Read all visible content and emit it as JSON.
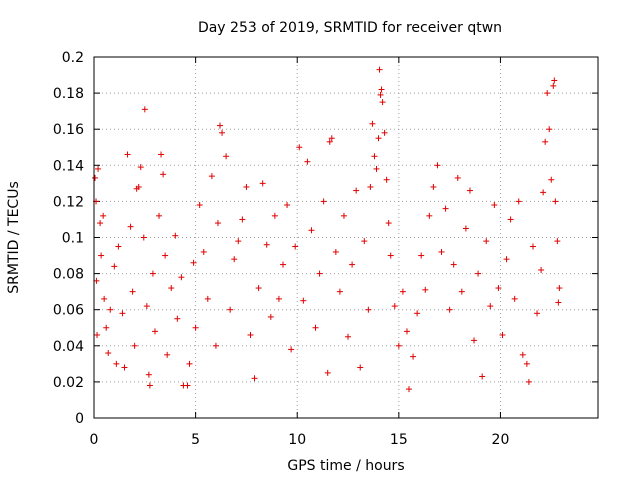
{
  "chart_data": {
    "type": "scatter",
    "title": "Day 253 of 2019, SRMTID for receiver qtwn",
    "xlabel": "GPS time / hours",
    "ylabel": "SRMTID / TECUs",
    "xlim": [
      0,
      24.8
    ],
    "ylim": [
      0,
      0.2
    ],
    "xticks": [
      0,
      5,
      10,
      15,
      20
    ],
    "yticks": [
      0,
      0.02,
      0.04,
      0.06,
      0.08,
      0.1,
      0.12,
      0.14,
      0.16,
      0.18,
      0.2
    ],
    "marker": "+",
    "color": "#e00000",
    "grid": true,
    "series": [
      {
        "name": "SRMTID",
        "points": [
          [
            0.05,
            0.133
          ],
          [
            0.1,
            0.12
          ],
          [
            0.12,
            0.076
          ],
          [
            0.15,
            0.046
          ],
          [
            0.2,
            0.138
          ],
          [
            0.3,
            0.108
          ],
          [
            0.35,
            0.09
          ],
          [
            0.45,
            0.112
          ],
          [
            0.5,
            0.066
          ],
          [
            0.6,
            0.05
          ],
          [
            0.7,
            0.036
          ],
          [
            0.8,
            0.06
          ],
          [
            1.0,
            0.084
          ],
          [
            1.1,
            0.03
          ],
          [
            1.2,
            0.095
          ],
          [
            1.4,
            0.058
          ],
          [
            1.5,
            0.028
          ],
          [
            1.65,
            0.146
          ],
          [
            1.8,
            0.106
          ],
          [
            1.9,
            0.07
          ],
          [
            2.0,
            0.04
          ],
          [
            2.1,
            0.127
          ],
          [
            2.2,
            0.128
          ],
          [
            2.3,
            0.139
          ],
          [
            2.45,
            0.1
          ],
          [
            2.5,
            0.171
          ],
          [
            2.6,
            0.062
          ],
          [
            2.7,
            0.024
          ],
          [
            2.75,
            0.018
          ],
          [
            2.9,
            0.08
          ],
          [
            3.0,
            0.048
          ],
          [
            3.2,
            0.112
          ],
          [
            3.3,
            0.146
          ],
          [
            3.4,
            0.135
          ],
          [
            3.5,
            0.09
          ],
          [
            3.6,
            0.035
          ],
          [
            3.8,
            0.072
          ],
          [
            4.0,
            0.101
          ],
          [
            4.1,
            0.055
          ],
          [
            4.3,
            0.078
          ],
          [
            4.4,
            0.018
          ],
          [
            4.6,
            0.018
          ],
          [
            4.7,
            0.03
          ],
          [
            4.9,
            0.086
          ],
          [
            5.0,
            0.05
          ],
          [
            5.2,
            0.118
          ],
          [
            5.4,
            0.092
          ],
          [
            5.6,
            0.066
          ],
          [
            5.8,
            0.134
          ],
          [
            6.0,
            0.04
          ],
          [
            6.1,
            0.108
          ],
          [
            6.2,
            0.162
          ],
          [
            6.3,
            0.158
          ],
          [
            6.5,
            0.145
          ],
          [
            6.7,
            0.06
          ],
          [
            6.9,
            0.088
          ],
          [
            7.1,
            0.098
          ],
          [
            7.3,
            0.11
          ],
          [
            7.5,
            0.128
          ],
          [
            7.7,
            0.046
          ],
          [
            7.9,
            0.022
          ],
          [
            8.1,
            0.072
          ],
          [
            8.3,
            0.13
          ],
          [
            8.5,
            0.096
          ],
          [
            8.7,
            0.056
          ],
          [
            8.9,
            0.112
          ],
          [
            9.1,
            0.066
          ],
          [
            9.3,
            0.085
          ],
          [
            9.5,
            0.118
          ],
          [
            9.7,
            0.038
          ],
          [
            9.9,
            0.095
          ],
          [
            10.1,
            0.15
          ],
          [
            10.3,
            0.065
          ],
          [
            10.5,
            0.142
          ],
          [
            10.7,
            0.104
          ],
          [
            10.9,
            0.05
          ],
          [
            11.1,
            0.08
          ],
          [
            11.3,
            0.12
          ],
          [
            11.5,
            0.025
          ],
          [
            11.6,
            0.153
          ],
          [
            11.7,
            0.155
          ],
          [
            11.9,
            0.092
          ],
          [
            12.1,
            0.07
          ],
          [
            12.3,
            0.112
          ],
          [
            12.5,
            0.045
          ],
          [
            12.7,
            0.085
          ],
          [
            12.9,
            0.126
          ],
          [
            13.1,
            0.028
          ],
          [
            13.3,
            0.098
          ],
          [
            13.5,
            0.06
          ],
          [
            13.6,
            0.128
          ],
          [
            13.7,
            0.163
          ],
          [
            13.8,
            0.145
          ],
          [
            13.9,
            0.138
          ],
          [
            14.0,
            0.155
          ],
          [
            14.05,
            0.193
          ],
          [
            14.1,
            0.179
          ],
          [
            14.15,
            0.182
          ],
          [
            14.2,
            0.175
          ],
          [
            14.3,
            0.158
          ],
          [
            14.4,
            0.132
          ],
          [
            14.5,
            0.108
          ],
          [
            14.6,
            0.09
          ],
          [
            14.8,
            0.062
          ],
          [
            15.0,
            0.04
          ],
          [
            15.2,
            0.07
          ],
          [
            15.4,
            0.048
          ],
          [
            15.5,
            0.016
          ],
          [
            15.7,
            0.034
          ],
          [
            15.9,
            0.058
          ],
          [
            16.1,
            0.09
          ],
          [
            16.3,
            0.071
          ],
          [
            16.5,
            0.112
          ],
          [
            16.7,
            0.128
          ],
          [
            16.9,
            0.14
          ],
          [
            17.1,
            0.092
          ],
          [
            17.3,
            0.116
          ],
          [
            17.5,
            0.06
          ],
          [
            17.7,
            0.085
          ],
          [
            17.9,
            0.133
          ],
          [
            18.1,
            0.07
          ],
          [
            18.3,
            0.105
          ],
          [
            18.5,
            0.126
          ],
          [
            18.7,
            0.043
          ],
          [
            18.9,
            0.08
          ],
          [
            19.1,
            0.023
          ],
          [
            19.3,
            0.098
          ],
          [
            19.5,
            0.062
          ],
          [
            19.7,
            0.118
          ],
          [
            19.9,
            0.072
          ],
          [
            20.1,
            0.046
          ],
          [
            20.3,
            0.088
          ],
          [
            20.5,
            0.11
          ],
          [
            20.7,
            0.066
          ],
          [
            20.9,
            0.12
          ],
          [
            21.1,
            0.035
          ],
          [
            21.3,
            0.03
          ],
          [
            21.4,
            0.02
          ],
          [
            21.6,
            0.095
          ],
          [
            21.8,
            0.058
          ],
          [
            22.0,
            0.082
          ],
          [
            22.1,
            0.125
          ],
          [
            22.2,
            0.153
          ],
          [
            22.3,
            0.18
          ],
          [
            22.4,
            0.16
          ],
          [
            22.5,
            0.132
          ],
          [
            22.6,
            0.184
          ],
          [
            22.65,
            0.187
          ],
          [
            22.7,
            0.12
          ],
          [
            22.8,
            0.098
          ],
          [
            22.85,
            0.064
          ],
          [
            22.9,
            0.072
          ]
        ]
      }
    ]
  }
}
